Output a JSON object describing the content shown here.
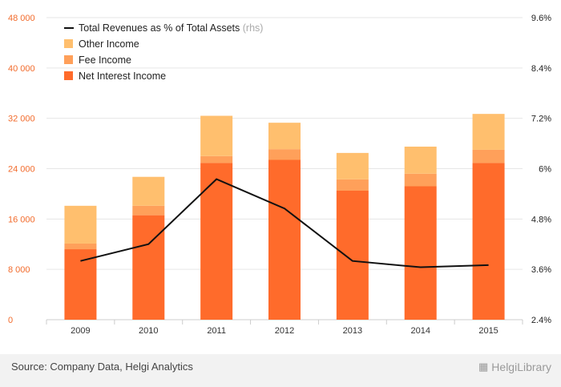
{
  "chart_data": {
    "type": "bar",
    "stacked": true,
    "categories": [
      "2009",
      "2010",
      "2011",
      "2012",
      "2013",
      "2014",
      "2015"
    ],
    "series": [
      {
        "name": "Net Interest Income",
        "color": "#ff6b2b",
        "values": [
          11200,
          16600,
          24900,
          25400,
          20500,
          21200,
          24900
        ]
      },
      {
        "name": "Fee Income",
        "color": "#ffa05a",
        "values": [
          900,
          1500,
          1100,
          1700,
          1800,
          2000,
          2100
        ]
      },
      {
        "name": "Other Income",
        "color": "#ffbf6e",
        "values": [
          6000,
          4600,
          6400,
          4200,
          4200,
          4300,
          5700
        ]
      }
    ],
    "line_series": {
      "name": "Total Revenues as % of Total Assets",
      "axis": "right",
      "color": "#111111",
      "values": [
        3.8,
        4.2,
        5.75,
        5.05,
        3.8,
        3.65,
        3.7
      ]
    },
    "legend_note": "(rhs)",
    "left_axis": {
      "min": 0,
      "max": 48000,
      "ticks": [
        "0",
        "8 000",
        "16 000",
        "24 000",
        "32 000",
        "40 000",
        "48 000"
      ]
    },
    "right_axis": {
      "min": 2.4,
      "max": 9.6,
      "ticks": [
        "2.4%",
        "3.6%",
        "4.8%",
        "6%",
        "7.2%",
        "8.4%",
        "9.6%"
      ]
    },
    "grid": true,
    "legend_position": "top-left"
  },
  "footer": {
    "source": "Source: Company Data, Helgi Analytics",
    "brand": "HelgiLibrary",
    "brand_icon": "helgi-library-logo-icon"
  }
}
